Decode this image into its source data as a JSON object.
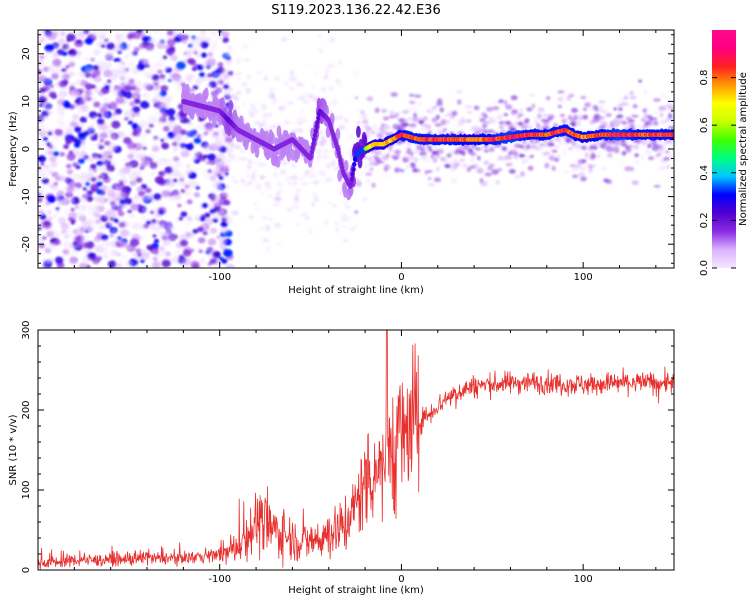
{
  "chart_data": [
    {
      "id": "spectrogram",
      "type": "heatmap",
      "title": "S119.2023.136.22.42.E36",
      "xlabel": "Height of straight line (km)",
      "ylabel": "Frequency (Hz)",
      "xlim": [
        -200,
        150
      ],
      "ylim": [
        -25,
        25
      ],
      "xticks": [
        -100,
        0,
        100
      ],
      "yticks": [
        -20,
        -10,
        0,
        10,
        20
      ],
      "colorbar": {
        "label": "Normalized spectral amplitude",
        "range": [
          0,
          1
        ],
        "ticks": [
          0.0,
          0.2,
          0.4,
          0.6,
          0.8
        ],
        "colormap": [
          "#f4e6ff",
          "#d9b3ff",
          "#8a2be2",
          "#5000d0",
          "#0000ff",
          "#00c8ff",
          "#00ff80",
          "#40ff00",
          "#c8ff00",
          "#ffff00",
          "#ff9900",
          "#ff2020",
          "#ff0080",
          "#ff0a8c"
        ]
      },
      "ridge": {
        "x": [
          -120,
          -110,
          -100,
          -95,
          -90,
          -85,
          -80,
          -75,
          -70,
          -65,
          -60,
          -55,
          -50,
          -45,
          -40,
          -35,
          -32,
          -28,
          -25,
          -20,
          -15,
          -10,
          -5,
          0,
          10,
          20,
          30,
          40,
          50,
          60,
          70,
          80,
          90,
          95,
          100,
          110,
          120,
          130,
          140,
          150
        ],
        "y": [
          10,
          9,
          8,
          6,
          4,
          3,
          2,
          1,
          0,
          1,
          2,
          0,
          -2,
          8,
          6,
          0,
          -5,
          -8,
          -1,
          0,
          1,
          1,
          2,
          3,
          2,
          2,
          2,
          2,
          2,
          2.5,
          3,
          3,
          4,
          3,
          2.5,
          3,
          3,
          3,
          3,
          3
        ],
        "amplitude": [
          0.3,
          0.3,
          0.3,
          0.4,
          0.3,
          0.3,
          0.3,
          0.3,
          0.3,
          0.3,
          0.3,
          0.3,
          0.3,
          0.4,
          0.3,
          0.3,
          0.3,
          0.3,
          0.6,
          0.6,
          0.8,
          0.8,
          0.8,
          0.9,
          0.9,
          0.9,
          0.9,
          0.85,
          0.9,
          0.95,
          0.9,
          0.9,
          0.9,
          0.9,
          0.85,
          0.9,
          0.95,
          0.9,
          0.9,
          0.9
        ]
      }
    },
    {
      "id": "snr",
      "type": "line",
      "xlabel": "Height of straight line (km)",
      "ylabel": "SNR (10 * v/v)",
      "xlim": [
        -200,
        150
      ],
      "ylim": [
        0,
        300
      ],
      "xticks": [
        -100,
        0,
        100
      ],
      "yticks": [
        0,
        100,
        200,
        300
      ],
      "color": "#e8312e",
      "series": [
        {
          "x": [
            -200,
            -190,
            -180,
            -170,
            -160,
            -150,
            -140,
            -130,
            -120,
            -110,
            -100,
            -95,
            -90,
            -85,
            -80,
            -75,
            -70,
            -65,
            -60,
            -55,
            -50,
            -45,
            -40,
            -35,
            -30,
            -25,
            -22,
            -20,
            -18,
            -15,
            -12,
            -10,
            -8,
            -5,
            -3,
            0,
            5,
            10,
            15,
            20,
            25,
            30,
            35,
            40,
            50,
            60,
            70,
            80,
            90,
            100,
            110,
            120,
            130,
            140,
            150
          ],
          "y": [
            10,
            10,
            12,
            12,
            13,
            13,
            14,
            15,
            15,
            17,
            20,
            22,
            30,
            45,
            60,
            55,
            50,
            45,
            40,
            35,
            35,
            40,
            45,
            50,
            60,
            80,
            100,
            110,
            120,
            125,
            130,
            140,
            150,
            155,
            160,
            165,
            175,
            185,
            195,
            205,
            215,
            222,
            226,
            230,
            232,
            234,
            235,
            234,
            233,
            232,
            233,
            234,
            235,
            234,
            235
          ]
        }
      ]
    }
  ]
}
